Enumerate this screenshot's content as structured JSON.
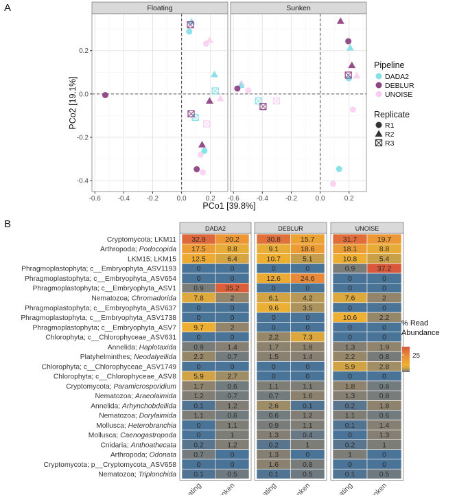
{
  "panel_labels": [
    "A",
    "B"
  ],
  "chart_data": [
    {
      "type": "scatter",
      "facets": [
        "Floating",
        "Sunken"
      ],
      "xlabel": "PCo1 [39.8%]",
      "ylabel": "PCo2 [19.1%]",
      "xlim": [
        -0.62,
        0.32
      ],
      "ylim": [
        -0.45,
        0.37
      ],
      "xticks": [
        -0.6,
        -0.4,
        -0.2,
        0.0,
        0.2
      ],
      "xtick_labels": [
        "-0.6",
        "-0.4",
        "-0.2",
        "0.0",
        "0.2"
      ],
      "yticks": [
        -0.4,
        -0.2,
        0.0,
        0.2
      ],
      "ytick_labels": [
        "-0.4",
        "-0.2",
        "0.0",
        "0.2"
      ],
      "grid": true,
      "reference_lines": {
        "x": 0,
        "y": 0,
        "style": "dashed"
      },
      "legend": {
        "placement": "right",
        "color_title": "Pipeline",
        "color_entries": [
          {
            "name": "DADA2",
            "color": "#86e0e8"
          },
          {
            "name": "DEBLUR",
            "color": "#8e4585"
          },
          {
            "name": "UNOISE",
            "color": "#f9ccf1"
          }
        ],
        "shape_title": "Replicate",
        "shape_entries": [
          {
            "name": "R1",
            "shape": "circle"
          },
          {
            "name": "R2",
            "shape": "triangle"
          },
          {
            "name": "R3",
            "shape": "square-cross"
          }
        ]
      },
      "points": [
        {
          "facet": "Floating",
          "pipeline": "DADA2",
          "rep": "R2",
          "x": 0.069,
          "y": 0.333
        },
        {
          "facet": "Floating",
          "pipeline": "DEBLUR",
          "rep": "R3",
          "x": 0.061,
          "y": 0.319
        },
        {
          "facet": "Floating",
          "pipeline": "DADA2",
          "rep": "R1",
          "x": 0.053,
          "y": 0.288
        },
        {
          "facet": "Floating",
          "pipeline": "UNOISE",
          "rep": "R1",
          "x": 0.17,
          "y": 0.232
        },
        {
          "facet": "Floating",
          "pipeline": "UNOISE",
          "rep": "R2",
          "x": 0.194,
          "y": 0.248
        },
        {
          "facet": "Floating",
          "pipeline": "DADA2",
          "rep": "R2",
          "x": 0.227,
          "y": 0.09
        },
        {
          "facet": "Floating",
          "pipeline": "DADA2",
          "rep": "R3",
          "x": 0.233,
          "y": 0.014
        },
        {
          "facet": "Floating",
          "pipeline": "UNOISE",
          "rep": "R2",
          "x": 0.269,
          "y": -0.021
        },
        {
          "facet": "Floating",
          "pipeline": "DEBLUR",
          "rep": "R2",
          "x": 0.194,
          "y": -0.032
        },
        {
          "facet": "Floating",
          "pipeline": "DEBLUR",
          "rep": "R1",
          "x": -0.528,
          "y": -0.005
        },
        {
          "facet": "Floating",
          "pipeline": "DADA2",
          "rep": "R3",
          "x": 0.095,
          "y": -0.108
        },
        {
          "facet": "Floating",
          "pipeline": "DEBLUR",
          "rep": "R3",
          "x": 0.066,
          "y": -0.091
        },
        {
          "facet": "Floating",
          "pipeline": "UNOISE",
          "rep": "R3",
          "x": 0.173,
          "y": -0.138
        },
        {
          "facet": "Floating",
          "pipeline": "UNOISE",
          "rep": "R1",
          "x": 0.131,
          "y": -0.28
        },
        {
          "facet": "Floating",
          "pipeline": "DADA2",
          "rep": "R1",
          "x": 0.158,
          "y": -0.262
        },
        {
          "facet": "Floating",
          "pipeline": "DEBLUR",
          "rep": "R2",
          "x": 0.142,
          "y": -0.234
        },
        {
          "facet": "Floating",
          "pipeline": "UNOISE",
          "rep": "R1",
          "x": 0.147,
          "y": -0.361
        },
        {
          "facet": "Floating",
          "pipeline": "DEBLUR",
          "rep": "R1",
          "x": 0.105,
          "y": -0.347
        },
        {
          "facet": "Sunken",
          "pipeline": "DEBLUR",
          "rep": "R2",
          "x": 0.141,
          "y": 0.336
        },
        {
          "facet": "Sunken",
          "pipeline": "DEBLUR",
          "rep": "R1",
          "x": 0.195,
          "y": 0.243
        },
        {
          "facet": "Sunken",
          "pipeline": "DADA2",
          "rep": "R2",
          "x": 0.208,
          "y": 0.213
        },
        {
          "facet": "Sunken",
          "pipeline": "DEBLUR",
          "rep": "R2",
          "x": 0.219,
          "y": 0.132
        },
        {
          "facet": "Sunken",
          "pipeline": "UNOISE",
          "rep": "R2",
          "x": 0.253,
          "y": 0.084
        },
        {
          "facet": "Sunken",
          "pipeline": "DADA2",
          "rep": "R1",
          "x": 0.198,
          "y": 0.072
        },
        {
          "facet": "Sunken",
          "pipeline": "DEBLUR",
          "rep": "R3",
          "x": 0.195,
          "y": 0.087
        },
        {
          "facet": "Sunken",
          "pipeline": "UNOISE",
          "rep": "R2",
          "x": -0.544,
          "y": 0.05
        },
        {
          "facet": "Sunken",
          "pipeline": "DADA2",
          "rep": "R2",
          "x": -0.548,
          "y": 0.04
        },
        {
          "facet": "Sunken",
          "pipeline": "UNOISE",
          "rep": "R1",
          "x": -0.497,
          "y": 0.016
        },
        {
          "facet": "Sunken",
          "pipeline": "DEBLUR",
          "rep": "R1",
          "x": -0.573,
          "y": 0.025
        },
        {
          "facet": "Sunken",
          "pipeline": "DADA2",
          "rep": "R3",
          "x": -0.427,
          "y": -0.032
        },
        {
          "facet": "Sunken",
          "pipeline": "UNOISE",
          "rep": "R3",
          "x": -0.302,
          "y": -0.032
        },
        {
          "facet": "Sunken",
          "pipeline": "DEBLUR",
          "rep": "R3",
          "x": -0.395,
          "y": -0.058
        },
        {
          "facet": "Sunken",
          "pipeline": "UNOISE",
          "rep": "R1",
          "x": 0.227,
          "y": -0.072
        },
        {
          "facet": "Sunken",
          "pipeline": "DADA2",
          "rep": "R1",
          "x": 0.131,
          "y": -0.346
        },
        {
          "facet": "Sunken",
          "pipeline": "UNOISE",
          "rep": "R1",
          "x": 0.089,
          "y": -0.414
        }
      ]
    },
    {
      "type": "heatmap",
      "facets": [
        "DADA2",
        "DEBLUR",
        "UNOISE"
      ],
      "columns": [
        "Floating",
        "Sunken"
      ],
      "legend": {
        "title_lines": [
          "% Read",
          "Abundance"
        ],
        "tick": 25,
        "tick_label": "25",
        "placement": "right"
      },
      "colors": {
        "low": "#4a7398",
        "mid": "#8a8070",
        "high": "#f0b030",
        "max": "#d9583b"
      },
      "rows": [
        {
          "prefix": "Cryptomycota; LKM11",
          "italic": "",
          "values": [
            32.9,
            20.2,
            30.8,
            15.7,
            31.7,
            19.7
          ]
        },
        {
          "prefix": "Arthropoda; ",
          "italic": "Podocopida",
          "values": [
            17.5,
            8.8,
            9.1,
            18.6,
            18.1,
            8.8
          ]
        },
        {
          "prefix": "LKM15; LKM15",
          "italic": "",
          "values": [
            12.5,
            6.4,
            10.7,
            5.1,
            10.8,
            5.4
          ]
        },
        {
          "prefix": "Phragmoplastophyta; c__Embryophyta_ASV1193",
          "italic": "",
          "values": [
            0,
            0,
            0,
            0,
            0.9,
            37.2
          ]
        },
        {
          "prefix": "Phragmoplastophyta; c__Embryophyta_ASV654",
          "italic": "",
          "values": [
            0,
            0,
            12.6,
            24.6,
            0,
            0
          ]
        },
        {
          "prefix": "Phragmoplastophyta; c__Embryophyta_ASV1",
          "italic": "",
          "values": [
            0.9,
            35.2,
            0,
            0,
            0,
            0
          ]
        },
        {
          "prefix": "Nematozoa; ",
          "italic": "Chromadorida",
          "values": [
            7.8,
            2,
            6.1,
            4.2,
            7.6,
            2
          ]
        },
        {
          "prefix": "Phragmoplastophyta; c__Embryophyta_ASV637",
          "italic": "",
          "values": [
            0,
            0,
            9.6,
            3.5,
            0,
            0
          ]
        },
        {
          "prefix": "Phragmoplastophyta; c__Embryophyta_ASV1738",
          "italic": "",
          "values": [
            0,
            0,
            0,
            0,
            10.6,
            2.2
          ]
        },
        {
          "prefix": "Phragmoplastophyta; c__Embryophyta_ASV7",
          "italic": "",
          "values": [
            9.7,
            2,
            0,
            0,
            0,
            0
          ]
        },
        {
          "prefix": "Chlorophyta; c__Chlorophyceae_ASV631",
          "italic": "",
          "values": [
            0,
            0,
            2.2,
            7.3,
            0,
            0
          ]
        },
        {
          "prefix": "Annelida; ",
          "italic": "Haplotaxida",
          "values": [
            0.9,
            1.4,
            1.7,
            1.8,
            1.3,
            1.9
          ]
        },
        {
          "prefix": "Platyhelminthes; ",
          "italic": "Neodalyellida",
          "values": [
            2.2,
            0.7,
            1.5,
            1.4,
            2.2,
            0.8
          ]
        },
        {
          "prefix": "Chlorophyta; c__Chlorophyceae_ASV1749",
          "italic": "",
          "values": [
            0,
            0,
            0,
            0,
            5.9,
            2.8
          ]
        },
        {
          "prefix": "Chlorophyta; c__Chlorophyceae_ASV8",
          "italic": "",
          "values": [
            5.9,
            2.7,
            0,
            0,
            0,
            0
          ]
        },
        {
          "prefix": "Cryptomycota; ",
          "italic": "Paramicrosporidium",
          "values": [
            1.7,
            0.6,
            1.1,
            1.1,
            1.8,
            0.6
          ]
        },
        {
          "prefix": "Nematozoa; ",
          "italic": "Araeolaimida",
          "values": [
            1.2,
            0.7,
            0.7,
            1.6,
            1.3,
            0.8
          ]
        },
        {
          "prefix": "Annelida; ",
          "italic": "Arhynchobdellida",
          "values": [
            0.1,
            1.2,
            2.6,
            0.1,
            0.2,
            1.8
          ]
        },
        {
          "prefix": "Nematozoa; ",
          "italic": "Dorylaimida",
          "values": [
            1.1,
            0.6,
            0.6,
            1.2,
            1.1,
            0.6
          ]
        },
        {
          "prefix": "Mollusca; ",
          "italic": "Heterobranchia",
          "values": [
            0,
            1.1,
            0.9,
            1.1,
            0.1,
            1.4
          ]
        },
        {
          "prefix": "Mollusca; ",
          "italic": "Caenogastropoda",
          "values": [
            0,
            1,
            1.3,
            0.4,
            0,
            1.3
          ]
        },
        {
          "prefix": "Cnidaria; ",
          "italic": "Anthoathecata",
          "values": [
            0.2,
            1.2,
            0.2,
            1,
            0.2,
            1
          ]
        },
        {
          "prefix": "Arthropoda; ",
          "italic": "Odonata",
          "values": [
            0.7,
            0,
            1.3,
            0,
            1,
            0
          ]
        },
        {
          "prefix": "Cryptomycota; p__Cryptomycota_ASV658",
          "italic": "",
          "values": [
            0,
            0,
            1.6,
            0.8,
            0,
            0
          ]
        },
        {
          "prefix": "Nematozoa; ",
          "italic": "Triplonchida",
          "values": [
            0.1,
            0.5,
            0.1,
            0.5,
            0.1,
            0.5
          ]
        }
      ]
    }
  ]
}
